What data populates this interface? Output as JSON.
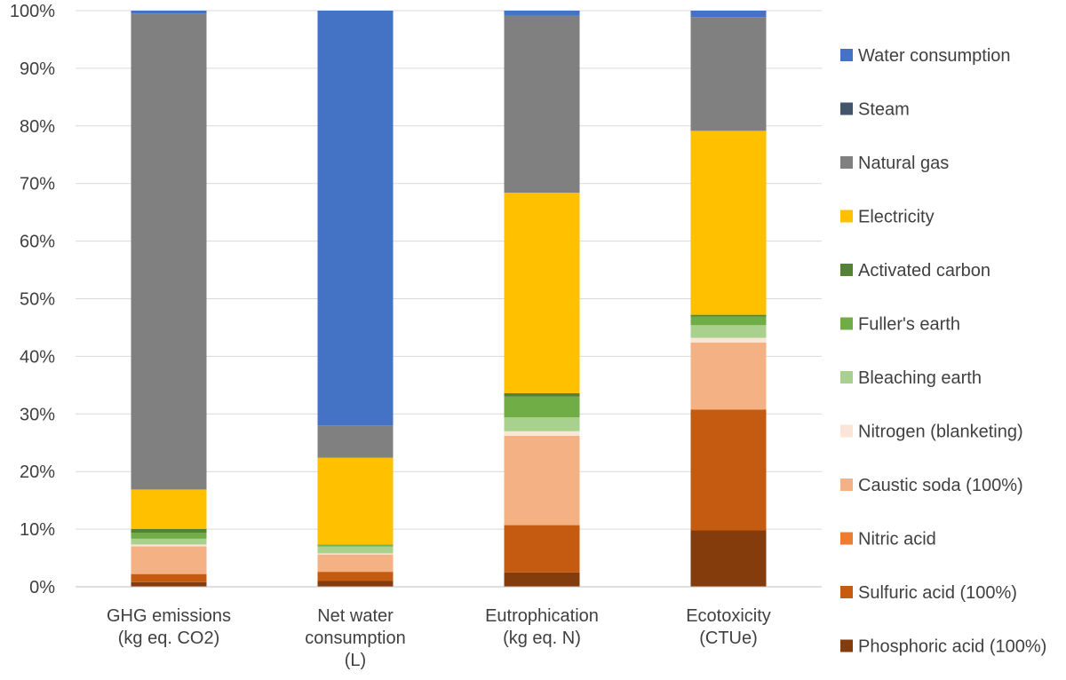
{
  "chart_data": {
    "type": "bar",
    "stacked": "percent",
    "title": "",
    "xlabel": "",
    "ylabel": "",
    "ylim": [
      0,
      100
    ],
    "yticks": [
      "0%",
      "10%",
      "20%",
      "30%",
      "40%",
      "50%",
      "60%",
      "70%",
      "80%",
      "90%",
      "100%"
    ],
    "grid": true,
    "legend_position": "right",
    "categories": [
      [
        "GHG emissions",
        "(kg eq. CO2)"
      ],
      [
        "Net water",
        "consumption",
        "(L)"
      ],
      [
        "Eutrophication",
        "(kg eq. N)"
      ],
      [
        "Ecotoxicity",
        "(CTUe)"
      ]
    ],
    "series": [
      {
        "name": "Phosphoric acid (100%)",
        "color": "#843C0C",
        "values": [
          0.8,
          1.0,
          2.5,
          9.8
        ]
      },
      {
        "name": "Sulfuric acid (100%)",
        "color": "#C55A11",
        "values": [
          1.4,
          1.6,
          8.2,
          21.0
        ]
      },
      {
        "name": "Nitric acid",
        "color": "#ED7D31",
        "values": [
          0.0,
          0.0,
          0.0,
          0.0
        ]
      },
      {
        "name": "Caustic soda (100%)",
        "color": "#F4B183",
        "values": [
          4.8,
          3.0,
          15.5,
          11.7
        ]
      },
      {
        "name": "Nitrogen (blanketing)",
        "color": "#FBE5D6",
        "values": [
          0.3,
          0.2,
          0.8,
          0.8
        ]
      },
      {
        "name": "Bleaching earth",
        "color": "#A9D18E",
        "values": [
          1.0,
          1.2,
          2.4,
          2.2
        ]
      },
      {
        "name": "Fuller's earth",
        "color": "#70AD47",
        "values": [
          1.0,
          0.2,
          3.6,
          1.5
        ]
      },
      {
        "name": "Activated carbon",
        "color": "#548235",
        "values": [
          0.7,
          0.1,
          0.6,
          0.3
        ]
      },
      {
        "name": "Electricity",
        "color": "#FFC000",
        "values": [
          6.8,
          15.1,
          34.8,
          32.0
        ]
      },
      {
        "name": "Natural gas",
        "color": "#808080",
        "values": [
          82.2,
          5.6,
          30.7,
          19.8
        ]
      },
      {
        "name": "Steam",
        "color": "#44546A",
        "values": [
          0.0,
          0.0,
          0.0,
          0.0
        ]
      },
      {
        "name": "Water consumption",
        "color": "#4472C4",
        "values": [
          0.5,
          72.0,
          0.9,
          1.1
        ]
      }
    ]
  }
}
